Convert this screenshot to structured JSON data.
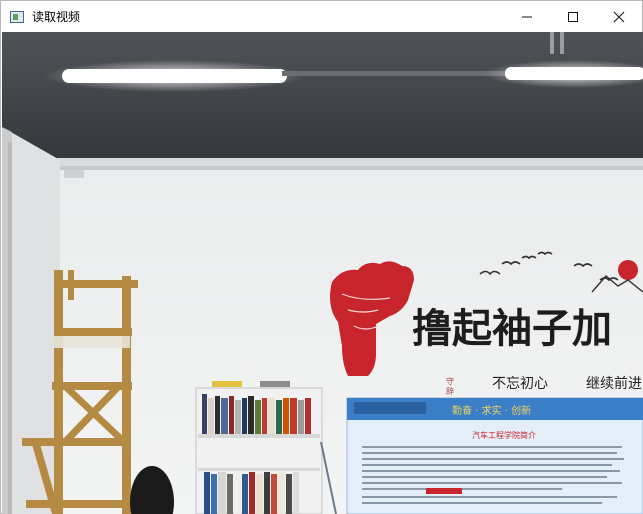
{
  "window": {
    "title": "读取视频",
    "app_icon": "opencv-window-icon",
    "controls": [
      "minimize-icon",
      "maximize-icon",
      "close-icon"
    ]
  },
  "video": {
    "banner": {
      "slogan_left": "撸起袖子加",
      "small_vertical": "守\n辞",
      "motto_1": "不忘初心",
      "motto_2": "继续前进"
    },
    "board": {
      "title": "汽车工程学院简介"
    },
    "colors": {
      "ceiling": "#3e4146",
      "wall": "#eef0f1",
      "fist": "#c8242c",
      "board_blue": "#3b7fc9"
    }
  }
}
